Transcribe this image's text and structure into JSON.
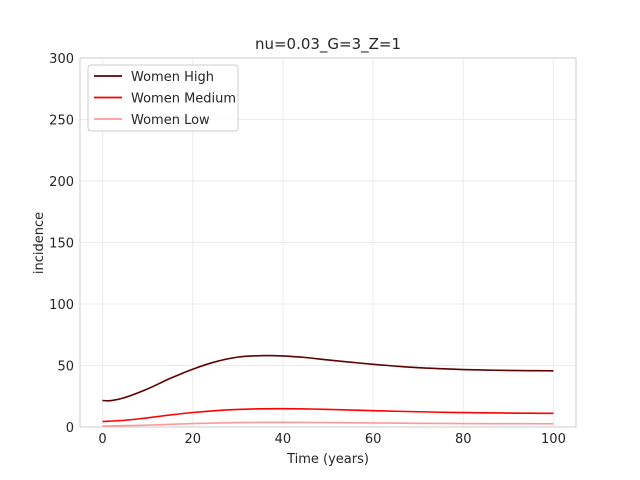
{
  "chart_data": {
    "type": "line",
    "title": "nu=0.03_G=3_Z=1",
    "xlabel": "Time (years)",
    "ylabel": "incidence",
    "xlim": [
      -5,
      105
    ],
    "ylim": [
      0,
      300
    ],
    "xticks": [
      0,
      20,
      40,
      60,
      80,
      100
    ],
    "yticks": [
      0,
      50,
      100,
      150,
      200,
      250,
      300
    ],
    "grid": true,
    "legend_position": "top-left",
    "series": [
      {
        "name": "Women High",
        "color": "#5c0000",
        "x": [
          0,
          2,
          5,
          10,
          15,
          20,
          25,
          30,
          35,
          40,
          45,
          50,
          55,
          60,
          65,
          70,
          75,
          80,
          85,
          90,
          95,
          100
        ],
        "y": [
          21.5,
          21.5,
          24,
          31,
          39.5,
          47,
          53,
          56.8,
          58,
          57.8,
          56.5,
          54.5,
          52.7,
          51,
          49.5,
          48.2,
          47.4,
          46.7,
          46.3,
          46,
          45.8,
          45.7
        ]
      },
      {
        "name": "Women Medium",
        "color": "#ff0000",
        "x": [
          0,
          5,
          10,
          15,
          20,
          25,
          30,
          35,
          40,
          45,
          50,
          55,
          60,
          65,
          70,
          75,
          80,
          85,
          90,
          95,
          100
        ],
        "y": [
          4.5,
          5.5,
          7.5,
          9.8,
          11.8,
          13.3,
          14.3,
          14.8,
          14.9,
          14.7,
          14.3,
          13.8,
          13.3,
          12.8,
          12.4,
          12,
          11.7,
          11.5,
          11.3,
          11.2,
          11.1
        ]
      },
      {
        "name": "Women Low",
        "color": "#ff9999",
        "x": [
          0,
          10,
          20,
          30,
          40,
          50,
          60,
          70,
          80,
          90,
          100
        ],
        "y": [
          0.8,
          1.5,
          2.8,
          3.6,
          3.8,
          3.6,
          3.3,
          3,
          2.8,
          2.7,
          2.6
        ]
      }
    ]
  }
}
